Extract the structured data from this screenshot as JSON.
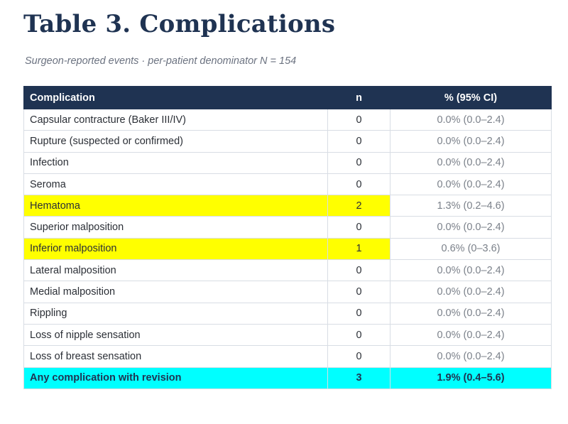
{
  "title": "Table 3.  Complications",
  "subtitle": "Surgeon-reported events  ·  per-patient denominator N = 154",
  "colors": {
    "header_bg": "#1f3352",
    "highlight_yellow": "#ffff00",
    "highlight_cyan": "#00ffff"
  },
  "table": {
    "headers": [
      "Complication",
      "n",
      "% (95% CI)"
    ],
    "rows": [
      {
        "complication": "Capsular contracture (Baker III/IV)",
        "n": "0",
        "pct": "0.0%  (0.0–2.4)",
        "highlight": ""
      },
      {
        "complication": "Rupture (suspected or confirmed)",
        "n": "0",
        "pct": "0.0%  (0.0–2.4)",
        "highlight": ""
      },
      {
        "complication": "Infection",
        "n": "0",
        "pct": "0.0%  (0.0–2.4)",
        "highlight": ""
      },
      {
        "complication": "Seroma",
        "n": "0",
        "pct": "0.0%  (0.0–2.4)",
        "highlight": ""
      },
      {
        "complication": "Hematoma",
        "n": "2",
        "pct": "1.3%  (0.2–4.6)",
        "highlight": "yellow"
      },
      {
        "complication": "Superior malposition",
        "n": "0",
        "pct": "0.0%  (0.0–2.4)",
        "highlight": ""
      },
      {
        "complication": "Inferior malposition",
        "n": "1",
        "pct": "0.6%  (0–3.6)",
        "highlight": "yellow"
      },
      {
        "complication": "Lateral malposition",
        "n": "0",
        "pct": "0.0%  (0.0–2.4)",
        "highlight": ""
      },
      {
        "complication": "Medial malposition",
        "n": "0",
        "pct": "0.0%  (0.0–2.4)",
        "highlight": ""
      },
      {
        "complication": "Rippling",
        "n": "0",
        "pct": "0.0%  (0.0–2.4)",
        "highlight": ""
      },
      {
        "complication": "Loss of nipple sensation",
        "n": "0",
        "pct": "0.0%  (0.0–2.4)",
        "highlight": ""
      },
      {
        "complication": "Loss of breast sensation",
        "n": "0",
        "pct": "0.0%  (0.0–2.4)",
        "highlight": ""
      }
    ],
    "total": {
      "complication": "Any complication with revision",
      "n": "3",
      "pct": "1.9%  (0.4–5.6)",
      "highlight": "cyan"
    }
  }
}
